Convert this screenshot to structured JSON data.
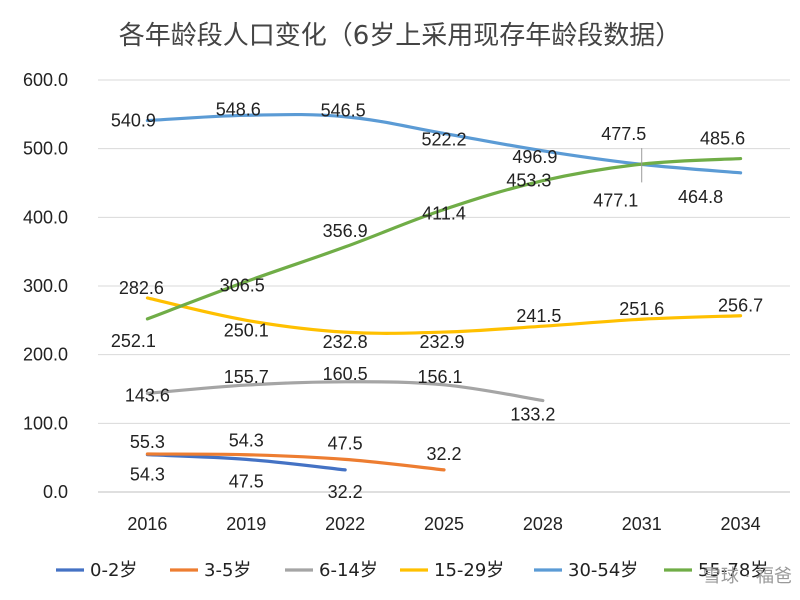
{
  "chart_data": {
    "type": "line",
    "title": "各年龄段人口变化（6岁上采用现存年龄段数据）",
    "xlabel": "",
    "ylabel": "",
    "categories": [
      "2016",
      "2019",
      "2022",
      "2025",
      "2028",
      "2031",
      "2034"
    ],
    "ylim": [
      0,
      600
    ],
    "yticks": [
      "0.0",
      "100.0",
      "200.0",
      "300.0",
      "400.0",
      "500.0",
      "600.0"
    ],
    "grid": "horizontal",
    "legend_position": "bottom",
    "series": [
      {
        "name": "0-2岁",
        "color": "#4472C4",
        "values": [
          54.3,
          47.5,
          32.2,
          null,
          null,
          null,
          null
        ],
        "labels": [
          "54.3",
          "47.5",
          "32.2",
          null,
          null,
          null,
          null
        ]
      },
      {
        "name": "3-5岁",
        "color": "#ED7D31",
        "values": [
          55.3,
          54.3,
          47.5,
          32.2,
          null,
          null,
          null
        ],
        "labels": [
          "55.3",
          "54.3",
          "47.5",
          "32.2",
          null,
          null,
          null
        ]
      },
      {
        "name": "6-14岁",
        "color": "#A5A5A5",
        "values": [
          143.6,
          155.7,
          160.5,
          156.1,
          133.2,
          null,
          null
        ],
        "labels": [
          "143.6",
          "155.7",
          "160.5",
          "156.1",
          "133.2",
          null,
          null
        ]
      },
      {
        "name": "15-29岁",
        "color": "#FFC000",
        "values": [
          282.6,
          250.1,
          232.8,
          232.9,
          241.5,
          251.6,
          256.7
        ],
        "labels": [
          "282.6",
          "250.1",
          "232.8",
          "232.9",
          "241.5",
          "251.6",
          "256.7"
        ]
      },
      {
        "name": "30-54岁",
        "color": "#5B9BD5",
        "values": [
          540.9,
          548.6,
          546.5,
          522.2,
          496.9,
          477.1,
          464.8
        ],
        "labels": [
          "540.9",
          "548.6",
          "546.5",
          "522.2",
          "496.9",
          "477.1",
          "464.8"
        ]
      },
      {
        "name": "55-78岁",
        "color": "#70AD47",
        "values": [
          252.1,
          306.5,
          356.9,
          411.4,
          453.3,
          477.5,
          485.6
        ],
        "labels": [
          "252.1",
          "306.5",
          "356.9",
          "411.4",
          "453.3",
          "477.5",
          "485.6"
        ]
      }
    ]
  },
  "watermark": "雪球 · 福爸"
}
